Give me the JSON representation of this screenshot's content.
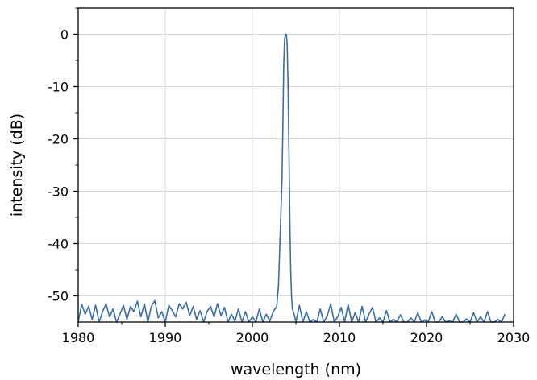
{
  "chart_data": {
    "type": "line",
    "title": "",
    "xlabel": "wavelength (nm)",
    "ylabel": "intensity (dB)",
    "xlim": [
      1980,
      2030
    ],
    "ylim": [
      -55,
      5
    ],
    "xticks": [
      1980,
      1990,
      2000,
      2010,
      2020,
      2030
    ],
    "yticks": [
      0,
      -10,
      -20,
      -30,
      -40,
      -50
    ],
    "xtick_labels": [
      "1980",
      "1990",
      "2000",
      "2010",
      "2020",
      "2030"
    ],
    "ytick_labels": [
      "0",
      "-10",
      "-20",
      "-30",
      "-40",
      "-50"
    ],
    "grid": true,
    "legend": "none",
    "line_color": "#3a6ea8",
    "series": [
      {
        "x": [
          1980.0,
          1980.4,
          1980.8,
          1981.2,
          1981.6,
          1982.0,
          1982.4,
          1982.8,
          1983.2,
          1983.6,
          1984.0,
          1984.4,
          1984.8,
          1985.2,
          1985.6,
          1986.0,
          1986.4,
          1986.8,
          1987.2,
          1987.6,
          1988.0,
          1988.4,
          1988.8,
          1989.2,
          1989.6,
          1990.0,
          1990.4,
          1990.8,
          1991.2,
          1991.6,
          1992.0,
          1992.4,
          1992.8,
          1993.2,
          1993.6,
          1994.0,
          1994.4,
          1994.8,
          1995.2,
          1995.6,
          1996.0,
          1996.4,
          1996.8,
          1997.2,
          1997.6,
          1998.0,
          1998.4,
          1998.8,
          1999.2,
          1999.6,
          2000.0,
          2000.4,
          2000.8,
          2001.2,
          2001.6,
          2002.0,
          2002.4,
          2002.8,
          2003.0,
          2003.2,
          2003.4,
          2003.5,
          2003.6,
          2003.7,
          2003.8,
          2003.9,
          2004.0,
          2004.1,
          2004.2,
          2004.3,
          2004.4,
          2004.5,
          2004.6,
          2004.8,
          2005.0,
          2005.4,
          2005.8,
          2006.2,
          2006.6,
          2007.0,
          2007.4,
          2007.8,
          2008.2,
          2008.6,
          2009.0,
          2009.4,
          2009.8,
          2010.2,
          2010.6,
          2011.0,
          2011.4,
          2011.8,
          2012.2,
          2012.6,
          2013.0,
          2013.4,
          2013.8,
          2014.2,
          2014.6,
          2015.0,
          2015.4,
          2015.8,
          2016.2,
          2016.6,
          2017.0,
          2017.4,
          2017.8,
          2018.2,
          2018.6,
          2019.0,
          2019.4,
          2019.8,
          2020.2,
          2020.6,
          2021.0,
          2021.4,
          2021.8,
          2022.2,
          2022.6,
          2023.0,
          2023.4,
          2023.8,
          2024.2,
          2024.6,
          2025.0,
          2025.4,
          2025.8,
          2026.2,
          2026.6,
          2027.0,
          2027.4,
          2027.8,
          2028.2,
          2028.6,
          2029.0
        ],
        "y": [
          -55,
          -51.6,
          -53.5,
          -52.0,
          -54.5,
          -51.8,
          -55,
          -53.0,
          -51.5,
          -54.0,
          -52.5,
          -55,
          -53.5,
          -51.8,
          -54.5,
          -52.0,
          -53.0,
          -51.0,
          -54.0,
          -51.5,
          -55,
          -52.0,
          -50.9,
          -54.2,
          -53.0,
          -55,
          -51.8,
          -52.8,
          -54.0,
          -51.5,
          -52.5,
          -51.2,
          -53.8,
          -52.0,
          -54.5,
          -52.8,
          -55,
          -53.0,
          -52.0,
          -54.0,
          -51.5,
          -53.8,
          -52.2,
          -55,
          -53.5,
          -54.8,
          -52.5,
          -55,
          -53.0,
          -55,
          -54.0,
          -55,
          -52.5,
          -55,
          -53.5,
          -54.8,
          -53.0,
          -52.0,
          -48.0,
          -38.0,
          -28.0,
          -18.0,
          -6.0,
          -1.0,
          0.0,
          0.0,
          -2.0,
          -10.0,
          -22.0,
          -35.0,
          -45.0,
          -50.0,
          -52.5,
          -53.5,
          -55,
          -51.8,
          -55,
          -53.0,
          -55,
          -54.5,
          -55,
          -52.5,
          -55,
          -53.8,
          -51.5,
          -55,
          -54.0,
          -52.2,
          -55,
          -51.6,
          -55,
          -53.2,
          -55,
          -52.0,
          -55,
          -53.5,
          -52.2,
          -55,
          -54.2,
          -55,
          -52.8,
          -55,
          -54.5,
          -55,
          -53.6,
          -55,
          -55,
          -54.2,
          -55,
          -53.2,
          -55,
          -54.6,
          -55,
          -53.0,
          -55,
          -55,
          -54.0,
          -55,
          -54.8,
          -55,
          -53.5,
          -55,
          -55,
          -54.4,
          -55,
          -53.2,
          -55,
          -54.0,
          -55,
          -53.0,
          -55,
          -55,
          -54.5,
          -55,
          -53.5
        ]
      }
    ]
  }
}
